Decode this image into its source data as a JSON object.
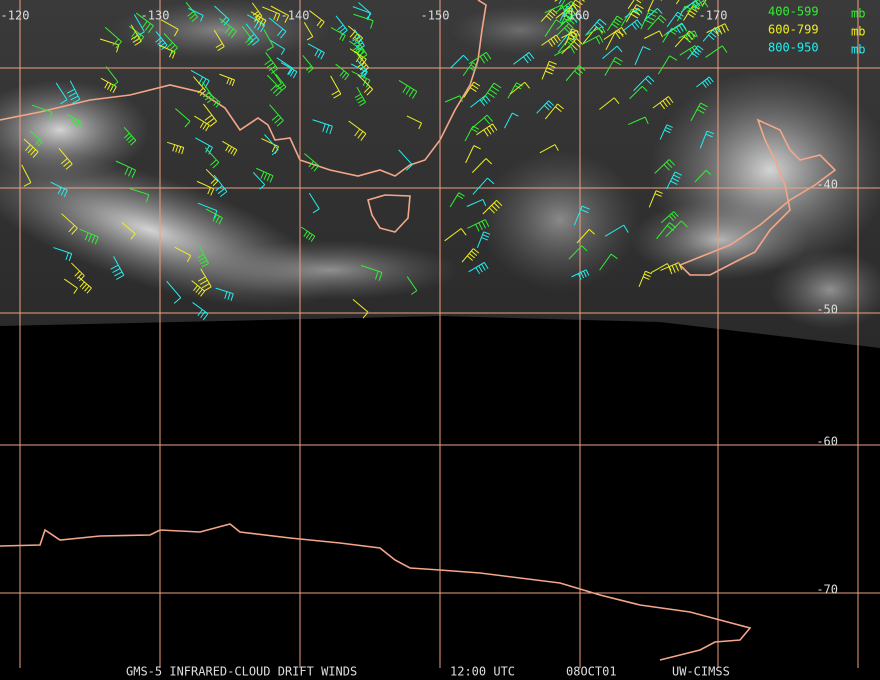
{
  "map": {
    "longitude_labels": [
      "-120",
      "-130",
      "-140",
      "-150",
      "-160",
      "-170"
    ],
    "latitude_labels": [
      "-40",
      "-50",
      "-60",
      "-70"
    ],
    "legend": [
      {
        "range": "400-599",
        "unit": "mb",
        "color": "#33ee33"
      },
      {
        "range": "600-799",
        "unit": "mb",
        "color": "#eeee22"
      },
      {
        "range": "800-950",
        "unit": "mb",
        "color": "#22eeee"
      }
    ],
    "footer": {
      "product": "GMS-5 INFRARED-CLOUD DRIFT WINDS",
      "time": "12:00 UTC",
      "date": "08OCT01",
      "source": "UW-CIMSS"
    }
  }
}
